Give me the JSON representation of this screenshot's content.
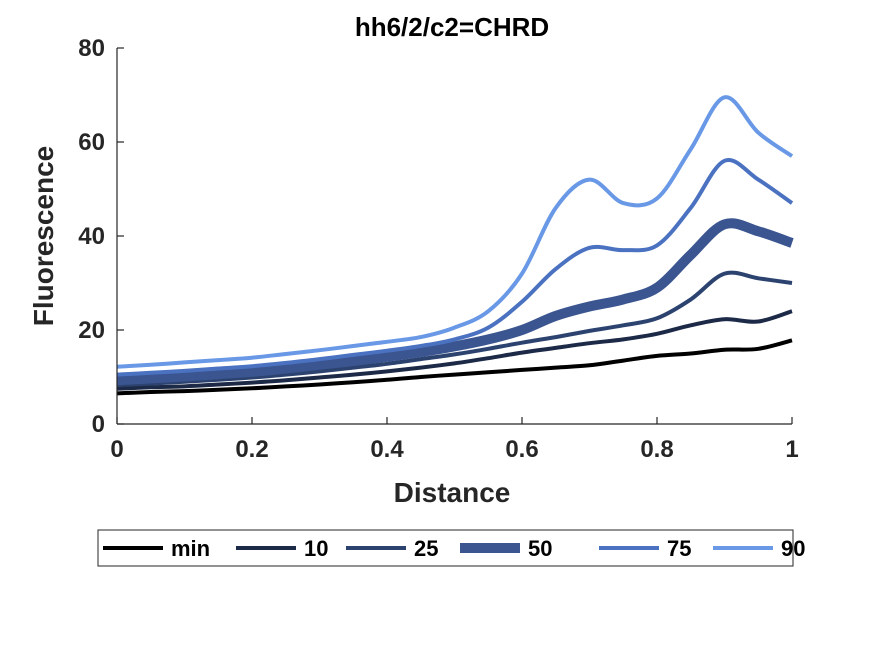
{
  "chart_data": {
    "type": "line",
    "title": "hh6/2/c2=CHRD",
    "xlabel": "Distance",
    "ylabel": "Fluorescence",
    "xlim": [
      0,
      1
    ],
    "ylim": [
      0,
      80
    ],
    "xticks": [
      "0",
      "0.2",
      "0.4",
      "0.6",
      "0.8",
      "1"
    ],
    "yticks": [
      "0",
      "20",
      "40",
      "60",
      "80"
    ],
    "grid": false,
    "legend_position": "bottom",
    "x": [
      0,
      0.05,
      0.1,
      0.15,
      0.2,
      0.25,
      0.3,
      0.35,
      0.4,
      0.45,
      0.5,
      0.55,
      0.6,
      0.65,
      0.7,
      0.75,
      0.8,
      0.85,
      0.9,
      0.95,
      1
    ],
    "series": [
      {
        "name": "min",
        "color": "#000000",
        "width": 4,
        "values": [
          6.5,
          6.8,
          7.0,
          7.3,
          7.6,
          8.0,
          8.4,
          8.9,
          9.4,
          10.0,
          10.5,
          11.0,
          11.5,
          12.0,
          12.5,
          13.5,
          14.5,
          15.0,
          15.8,
          16.0,
          17.8
        ]
      },
      {
        "name": "10",
        "color": "#1c2a48",
        "width": 4,
        "values": [
          7.5,
          7.8,
          8.0,
          8.4,
          8.8,
          9.3,
          9.9,
          10.5,
          11.2,
          12.0,
          12.9,
          14.0,
          15.2,
          16.2,
          17.2,
          18.0,
          19.2,
          21.0,
          22.3,
          21.8,
          24.0
        ]
      },
      {
        "name": "25",
        "color": "#2c4370",
        "width": 4,
        "values": [
          8.3,
          8.6,
          9.0,
          9.4,
          9.9,
          10.5,
          11.2,
          12.0,
          12.8,
          13.8,
          14.8,
          16.0,
          17.3,
          18.5,
          19.8,
          21.0,
          22.5,
          26.5,
          32.0,
          31.0,
          30.0
        ]
      },
      {
        "name": "50",
        "color": "#3a5590",
        "width": 10,
        "values": [
          9.3,
          9.7,
          10.1,
          10.6,
          11.1,
          11.8,
          12.6,
          13.4,
          14.3,
          15.3,
          16.5,
          18.0,
          20.0,
          23.0,
          25.0,
          26.5,
          29.0,
          36.0,
          42.5,
          41.0,
          38.5
        ]
      },
      {
        "name": "75",
        "color": "#4b72c1",
        "width": 4,
        "values": [
          10.5,
          10.9,
          11.3,
          11.8,
          12.3,
          13.0,
          13.8,
          14.7,
          15.6,
          16.6,
          18.0,
          20.5,
          26.0,
          33.0,
          37.5,
          37.0,
          38.0,
          46.0,
          56.0,
          52.0,
          47.0
        ]
      },
      {
        "name": "90",
        "color": "#6898e6",
        "width": 4,
        "values": [
          12.2,
          12.6,
          13.1,
          13.6,
          14.1,
          14.9,
          15.7,
          16.6,
          17.5,
          18.5,
          20.5,
          24.0,
          32.0,
          46.0,
          52.0,
          47.0,
          48.0,
          58.5,
          69.5,
          62.0,
          57.0
        ]
      }
    ]
  }
}
